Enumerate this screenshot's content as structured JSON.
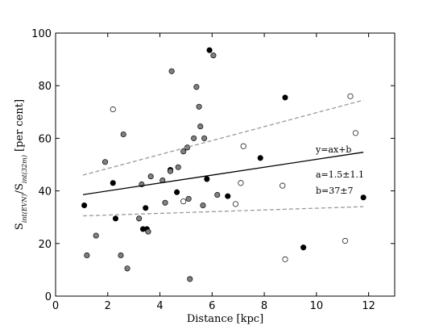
{
  "chart_data": {
    "type": "scatter",
    "xlabel": "Distance [kpc]",
    "ylabel_main": "S",
    "ylabel_sub1": "int(EVN)",
    "ylabel_mid": "/S",
    "ylabel_sub2": "int(32m)",
    "ylabel_unit": " [per cent]",
    "xlim": [
      0,
      13
    ],
    "ylim": [
      0,
      100
    ],
    "xticks": [
      0,
      2,
      4,
      6,
      8,
      10,
      12
    ],
    "yticks": [
      0,
      20,
      40,
      60,
      80,
      100
    ],
    "grid": false,
    "series": [
      {
        "marker": "black",
        "color": "#000000",
        "points": [
          [
            1.1,
            34.5
          ],
          [
            2.2,
            43
          ],
          [
            2.3,
            29.5
          ],
          [
            3.35,
            25.5
          ],
          [
            3.5,
            25.5
          ],
          [
            3.45,
            33.5
          ],
          [
            4.4,
            48
          ],
          [
            4.65,
            39.5
          ],
          [
            5.8,
            44.5
          ],
          [
            5.9,
            93.5
          ],
          [
            6.6,
            38
          ],
          [
            7.85,
            52.5
          ],
          [
            8.8,
            75.5
          ],
          [
            9.5,
            18.5
          ],
          [
            11.8,
            37.5
          ]
        ]
      },
      {
        "marker": "grey",
        "color": "#808080",
        "points": [
          [
            1.2,
            15.5
          ],
          [
            1.55,
            23
          ],
          [
            1.9,
            51
          ],
          [
            2.5,
            15.5
          ],
          [
            2.6,
            61.5
          ],
          [
            2.75,
            10.5
          ],
          [
            3.2,
            29.5
          ],
          [
            3.3,
            42.5
          ],
          [
            3.55,
            24.5
          ],
          [
            3.65,
            45.5
          ],
          [
            4.1,
            44
          ],
          [
            4.2,
            35.5
          ],
          [
            4.4,
            47.5
          ],
          [
            4.45,
            85.5
          ],
          [
            4.7,
            49
          ],
          [
            4.9,
            55
          ],
          [
            5.05,
            56.5
          ],
          [
            5.1,
            37
          ],
          [
            5.15,
            6.5
          ],
          [
            5.3,
            60
          ],
          [
            5.4,
            79.5
          ],
          [
            5.5,
            72
          ],
          [
            5.55,
            64.5
          ],
          [
            5.65,
            34.5
          ],
          [
            5.7,
            60
          ],
          [
            6.05,
            91.5
          ],
          [
            6.2,
            38.5
          ]
        ]
      },
      {
        "marker": "open",
        "color": "#ffffff",
        "points": [
          [
            2.2,
            71
          ],
          [
            4.9,
            36
          ],
          [
            6.9,
            35
          ],
          [
            7.1,
            43
          ],
          [
            7.2,
            57
          ],
          [
            8.7,
            42
          ],
          [
            8.8,
            14
          ],
          [
            11.1,
            21
          ],
          [
            11.3,
            76
          ],
          [
            11.5,
            62
          ]
        ]
      }
    ],
    "fit": {
      "equation": "y=ax+b",
      "a_label": "a=1.5±1.1",
      "b_label": "b=37±7",
      "a": 1.5,
      "b": 37,
      "x_range": [
        1.05,
        11.8
      ],
      "upper": [
        [
          1.05,
          46
        ],
        [
          11.8,
          74.5
        ]
      ],
      "lower": [
        [
          1.05,
          30.5
        ],
        [
          11.8,
          34
        ]
      ]
    }
  }
}
